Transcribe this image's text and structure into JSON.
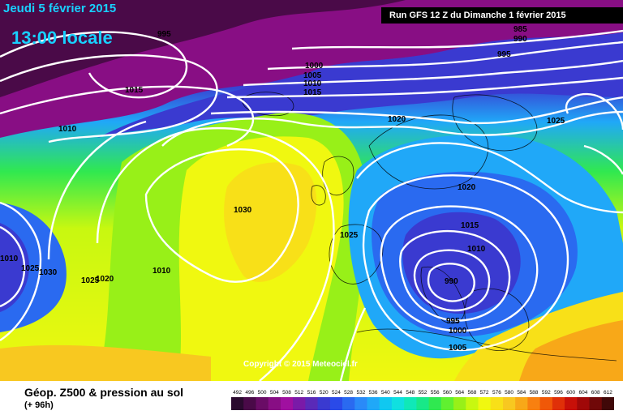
{
  "header": {
    "date": "Jeudi 5 février 2015",
    "time": "13:00 locale",
    "run": "Run GFS 12 Z du Dimanche 1 février 2015"
  },
  "footer": {
    "title": "Géop. Z500 & pression au sol",
    "lead": "(+ 96h)",
    "copyright": "Copyright © 2015 Meteociel.fr"
  },
  "scale": {
    "values": [
      "492",
      "496",
      "500",
      "504",
      "508",
      "512",
      "516",
      "520",
      "524",
      "528",
      "532",
      "536",
      "540",
      "544",
      "548",
      "552",
      "556",
      "560",
      "564",
      "568",
      "572",
      "576",
      "580",
      "584",
      "588",
      "592",
      "596",
      "600",
      "604",
      "608",
      "612"
    ],
    "colors": [
      "#2a0a2e",
      "#4a0a48",
      "#6a0c66",
      "#880e84",
      "#a010a0",
      "#7a1aa8",
      "#5a2ab8",
      "#3a3ad0",
      "#2a4ae8",
      "#2a6af0",
      "#2a8af8",
      "#20a8f8",
      "#10c8f0",
      "#10e0e0",
      "#10e8b8",
      "#18e888",
      "#30e850",
      "#60f030",
      "#98f018",
      "#c8f810",
      "#f0f810",
      "#f8e018",
      "#f8c820",
      "#f8a818",
      "#f88010",
      "#f05808",
      "#e03008",
      "#c81008",
      "#a00808",
      "#700808",
      "#400808"
    ]
  },
  "isobars": [
    "995",
    "985",
    "990",
    "995",
    "1000",
    "1005",
    "1010",
    "1015",
    "1015",
    "1010",
    "1020",
    "1025",
    "1030",
    "1025",
    "1010",
    "1020",
    "1015",
    "1010",
    "990",
    "995",
    "1000",
    "1005",
    "1010",
    "1025",
    "1030",
    "1025",
    "1020"
  ]
}
